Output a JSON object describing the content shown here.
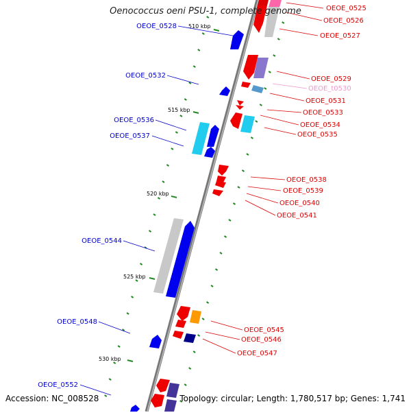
{
  "title": "Oenococcus oeni PSU-1, complete genome",
  "footer": {
    "accession": "Accession: NC_008528",
    "topology": "Topology: circular; Length: 1,780,517 bp; Genes: 1,741"
  },
  "colors": {
    "backbone": "#888888",
    "left_label": "#0000cc",
    "right_label": "#dd0000",
    "trna_label": "#ee99cc",
    "tick": "#228822"
  },
  "scale_labels": [
    "510 kbp",
    "515 kbp",
    "520 kbp",
    "525 kbp",
    "530 kbp"
  ],
  "left_genes": [
    "OEOE_0528",
    "OEOE_0532",
    "OEOE_0536",
    "OEOE_0537",
    "OEOE_0544",
    "OEOE_0548",
    "OEOE_0552"
  ],
  "right_genes": [
    "OEOE_0525",
    "OEOE_0526",
    "OEOE_0527",
    "OEOE_0529",
    "OEOE_t0530",
    "OEOE_0531",
    "OEOE_0533",
    "OEOE_0534",
    "OEOE_0535",
    "OEOE_0538",
    "OEOE_0539",
    "OEOE_0540",
    "OEOE_0541",
    "OEOE_0545",
    "OEOE_0546",
    "OEOE_0547"
  ]
}
